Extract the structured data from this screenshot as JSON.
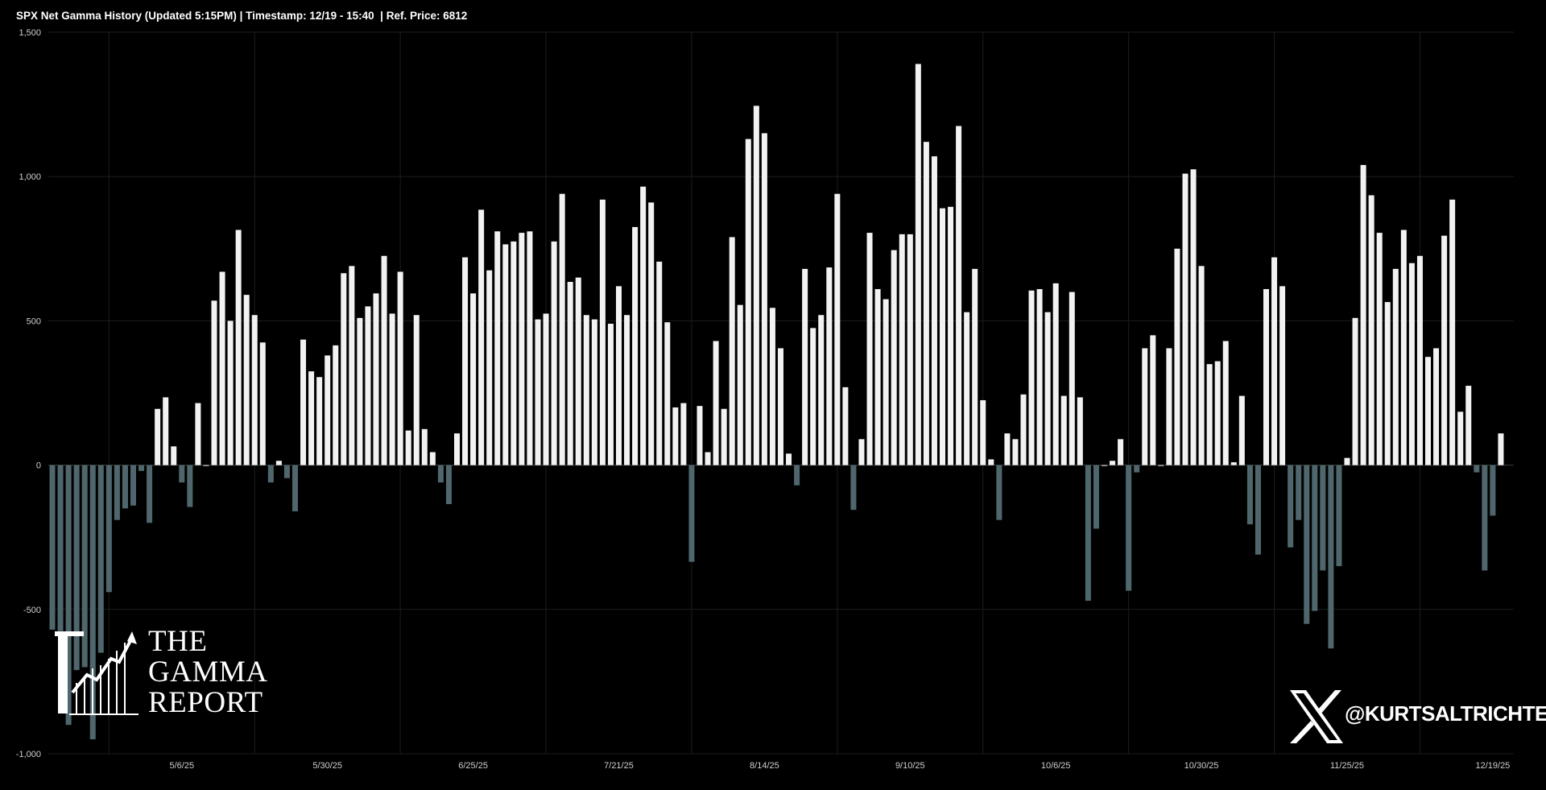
{
  "title": "SPX Net Gamma History (Updated 5:15PM) | Timestamp: 12/19 - 15:40  | Ref. Price: 6812",
  "logo": {
    "line1": "THE",
    "line2": "GAMMA",
    "line3": "REPORT"
  },
  "social": {
    "handle": "@KURTSALTRICHTER",
    "icon": "x-logo-icon"
  },
  "colors": {
    "positive": "#f2f2f2",
    "negative": "#4f676c",
    "background": "#000000",
    "grid": "#1a1f1c"
  },
  "chart_data": {
    "type": "bar",
    "ylim": [
      -1000,
      1500
    ],
    "yticks": [
      -1000,
      -500,
      0,
      500,
      1000,
      1500
    ],
    "ytick_labels": [
      "-1,000",
      "-500",
      "0",
      "500",
      "1,000",
      "1,500"
    ],
    "xtick_labels": [
      "5/6/25",
      "5/30/25",
      "6/25/25",
      "7/21/25",
      "8/14/25",
      "9/10/25",
      "10/6/25",
      "10/30/25",
      "11/25/25",
      "12/19/25"
    ],
    "xtick_bar_index": [
      16,
      34,
      52,
      70,
      88,
      106,
      124,
      142,
      160,
      178
    ],
    "grid": true,
    "values": [
      -570,
      -575,
      -900,
      -710,
      -700,
      -950,
      -650,
      -440,
      -190,
      -150,
      -140,
      -20,
      -200,
      195,
      235,
      65,
      -60,
      -145,
      215,
      0,
      570,
      670,
      500,
      815,
      590,
      520,
      425,
      -60,
      15,
      -45,
      -160,
      435,
      325,
      305,
      380,
      415,
      665,
      690,
      510,
      550,
      595,
      725,
      525,
      670,
      120,
      520,
      125,
      45,
      -60,
      -135,
      110,
      720,
      595,
      885,
      675,
      810,
      765,
      775,
      805,
      810,
      505,
      525,
      775,
      940,
      635,
      650,
      520,
      505,
      920,
      490,
      620,
      520,
      825,
      965,
      910,
      705,
      495,
      200,
      215,
      -335,
      205,
      45,
      430,
      195,
      790,
      555,
      1130,
      1245,
      1150,
      545,
      405,
      40,
      -70,
      680,
      475,
      520,
      685,
      940,
      270,
      -155,
      90,
      805,
      610,
      575,
      745,
      800,
      800,
      1390,
      1120,
      1070,
      890,
      895,
      1175,
      530,
      680,
      225,
      20,
      -190,
      110,
      90,
      245,
      605,
      610,
      530,
      630,
      240,
      600,
      235,
      -470,
      -220,
      0,
      15,
      90,
      -435,
      -25,
      405,
      450,
      0,
      405,
      750,
      1010,
      1025,
      690,
      350,
      360,
      430,
      10,
      240,
      -205,
      -310,
      610,
      720,
      620,
      -285,
      -190,
      -550,
      -505,
      -365,
      -635,
      -350,
      25,
      510,
      1040,
      935,
      805,
      565,
      680,
      815,
      700,
      725,
      375,
      405,
      795,
      920,
      185,
      275,
      -25,
      -365,
      -175,
      110
    ]
  }
}
